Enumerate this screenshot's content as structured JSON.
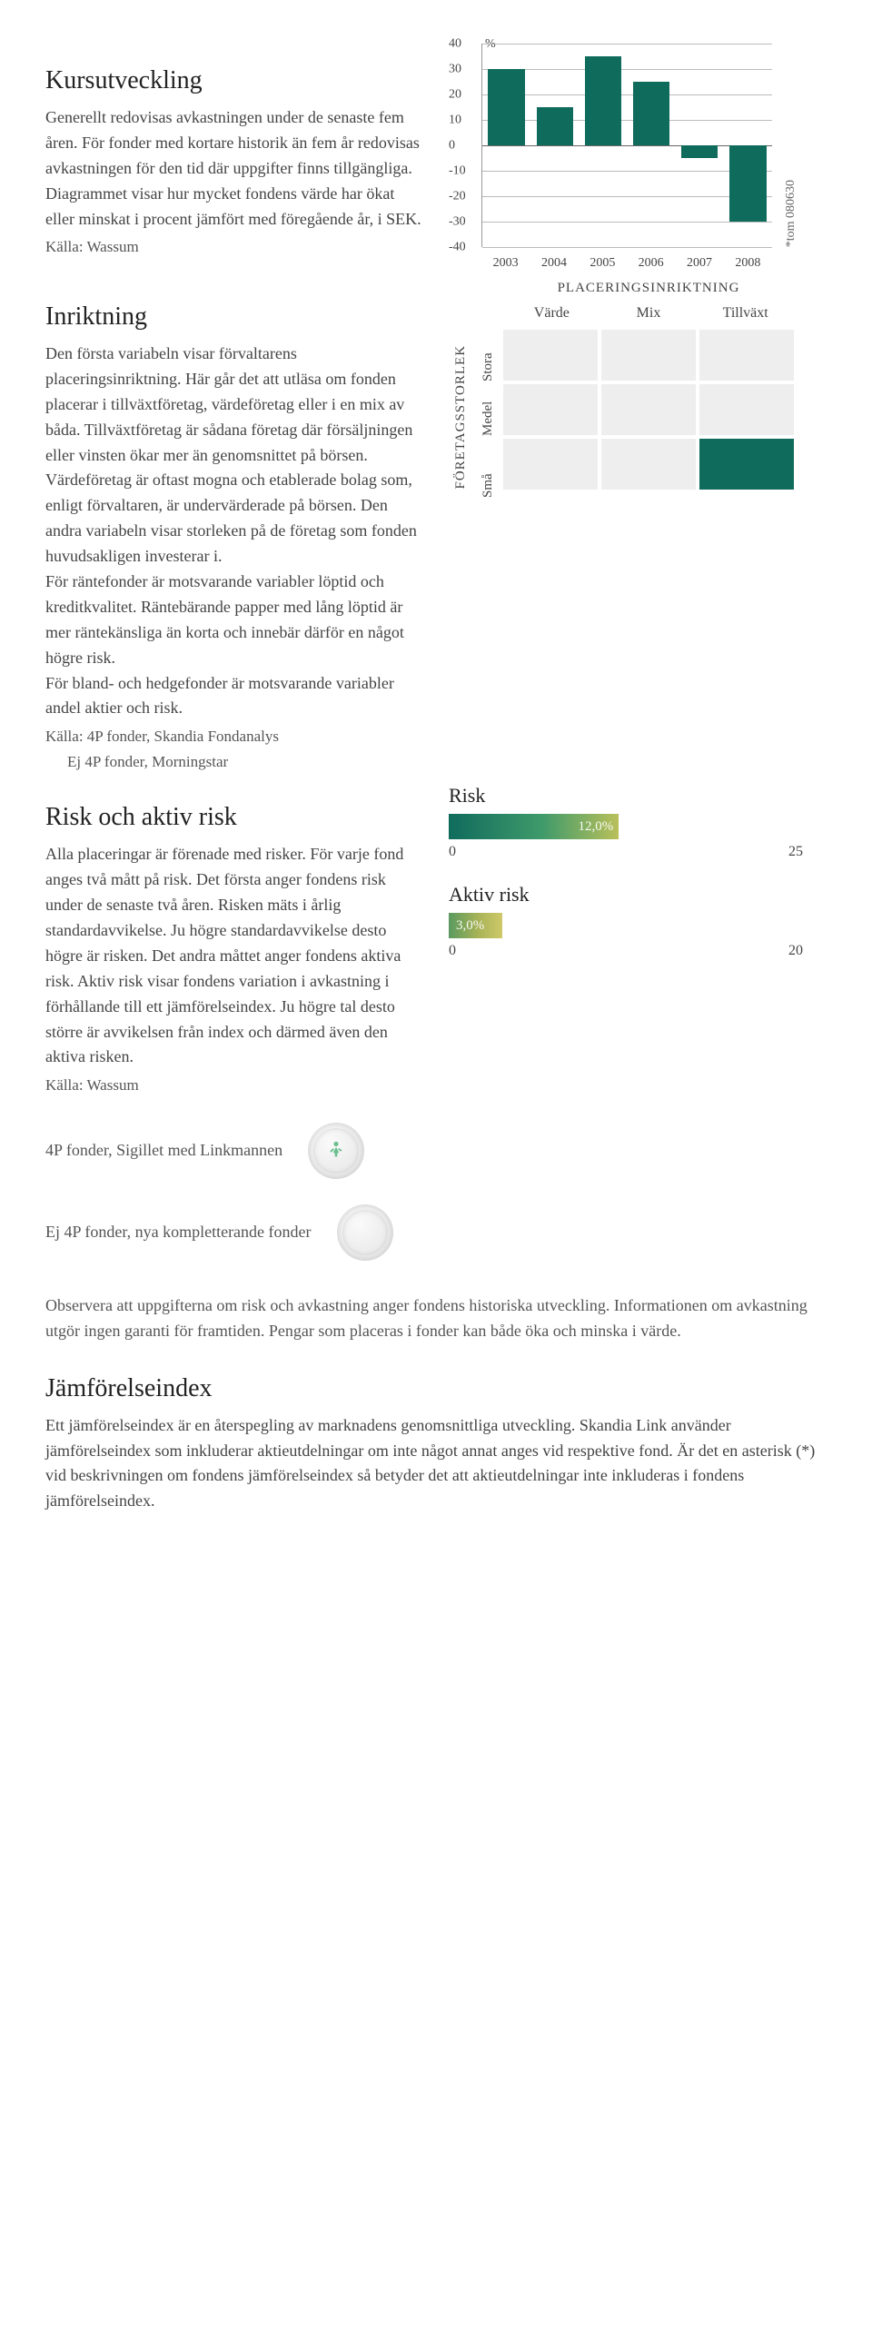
{
  "kurs": {
    "heading": "Kursutveckling",
    "body": "Generellt redovisas avkastningen under de senaste fem åren. För fonder med kortare historik än fem år redovisas avkastningen för den tid där uppgifter finns tillgängliga. Diagrammet visar hur mycket fondens värde har ökat eller minskat i procent jämfört med föregående år, i SEK.",
    "source": "Källa: Wassum"
  },
  "chart": {
    "pct_label": "%",
    "y_ticks": [
      40,
      30,
      20,
      10,
      0,
      -10,
      -20,
      -30,
      -40
    ],
    "y_min": -40,
    "y_max": 40,
    "categories": [
      "2003",
      "2004",
      "2005",
      "2006",
      "2007",
      "2008"
    ],
    "values": [
      30,
      15,
      35,
      25,
      -5,
      -30
    ],
    "bar_color": "#0f6b5c",
    "grid_color": "#bbbbbb",
    "side_note": "*tom 080630"
  },
  "inriktning": {
    "heading": "Inriktning",
    "body": "Den första variabeln visar förvaltarens placeringsinriktning. Här går det att utläsa om fonden placerar i tillväxtföretag, värdeföretag eller i en mix av båda. Tillväxtföretag är sådana företag där försäljningen eller vinsten ökar mer än genomsnittet på börsen. Värdeföretag är oftast mogna och etablerade bolag som, enligt förvaltaren, är undervärderade på börsen. Den andra variabeln visar storleken på de företag som fonden huvudsakligen investerar i.\n   För räntefonder är motsvarande variabler löptid och kreditkvalitet. Räntebärande papper med lång löptid är mer räntekänsliga än korta och innebär därför en något högre risk.\n   För bland- och hedgefonder är motsvarande variabler andel aktier och risk.",
    "source1": "Källa: 4P fonder, Skandia Fondanalys",
    "source2": "Ej 4P fonder, Morningstar"
  },
  "matrix": {
    "title": "PLACERINGSINRIKTNING",
    "cols": [
      "Värde",
      "Mix",
      "Tillväxt"
    ],
    "axis_v": "FÖRETAGSSTORLEK",
    "rows": [
      "Stora",
      "Medel",
      "Små"
    ],
    "active": [
      2,
      2
    ],
    "cell_off": "#eeeeee",
    "cell_on": "#0f6b5c"
  },
  "risk_section": {
    "heading": "Risk och aktiv risk",
    "body": "Alla placeringar är förenade med risker. För varje fond anges två mått på risk. Det första anger fondens risk under de senaste två åren. Risken mäts i årlig standardavvikelse. Ju högre standardavvikelse desto högre är risken. Det andra måttet anger fondens aktiva risk. Aktiv risk visar fondens variation i avkastning i förhållande till ett jämförelseindex. Ju högre tal desto större är avvikelsen från index och därmed även den aktiva risken.",
    "source": "Källa: Wassum"
  },
  "risk_bars": {
    "risk": {
      "title": "Risk",
      "value_label": "12,0%",
      "value": 12.0,
      "max": 25,
      "min_label": "0",
      "max_label": "25",
      "gradient": "linear-gradient(90deg, #0f6b5c 0%, #3f9a6b 55%, #b9c05a 100%)"
    },
    "aktiv": {
      "title": "Aktiv risk",
      "value_label": "3,0%",
      "value": 3.0,
      "max": 20,
      "min_label": "0",
      "max_label": "20",
      "gradient": "linear-gradient(90deg, #5a9a5f 0%, #a8b357 55%, #cfc96a 100%)"
    }
  },
  "seals": {
    "with": "4P fonder, Sigillet med Linkmannen",
    "without": "Ej 4P fonder, nya kompletterande fonder",
    "figure_color": "#6bbf8f"
  },
  "disclaimer": "Observera att uppgifterna om risk och avkastning anger fondens historiska utveckling. Informationen om avkastning utgör ingen garanti för framtiden. Pengar som placeras i fonder kan både öka och minska i värde.",
  "jmf": {
    "heading": "Jämförelseindex",
    "body": "Ett jämförelseindex är en återspegling av marknadens genomsnittliga utveckling. Skandia Link använder jämförelseindex som inkluderar aktieutdelningar om inte något annat anges vid respektive fond. Är det en asterisk (*) vid beskrivningen om fondens jämförelseindex så betyder det att aktieutdelningar inte inkluderas i fondens jämförelseindex."
  }
}
